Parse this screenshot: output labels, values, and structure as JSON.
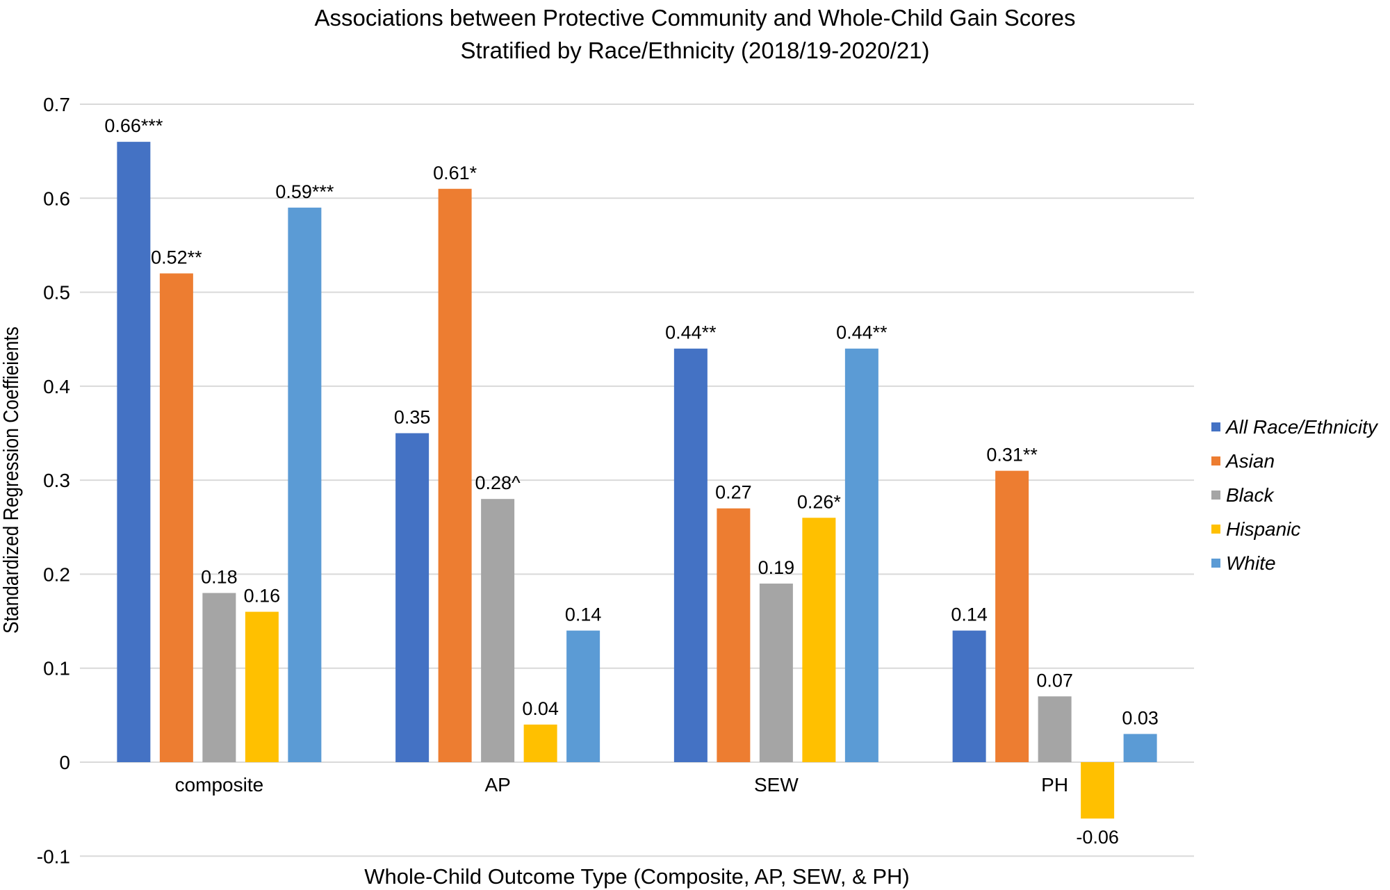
{
  "chart_data": {
    "type": "bar",
    "title": "Associations between Protective Community and Whole-Child Gain Scores",
    "subtitle": "Stratified by Race/Ethnicity (2018/19-2020/21)",
    "xlabel": "Whole-Child Outcome Type (Composite, AP, SEW, & PH)",
    "ylabel": "Standardized Regression Coeffieients",
    "ylim": [
      -0.1,
      0.7
    ],
    "yticks": [
      "-0.1",
      "0",
      "0.1",
      "0.2",
      "0.3",
      "0.4",
      "0.5",
      "0.6",
      "0.7"
    ],
    "grid": true,
    "legend_position": "right",
    "categories": [
      "composite",
      "AP",
      "SEW",
      "PH"
    ],
    "series": [
      {
        "name": "All Race/Ethnicity",
        "color": "#4472C4",
        "values": [
          0.66,
          0.35,
          0.44,
          0.14
        ],
        "labels": [
          "0.66***",
          "0.35",
          "0.44**",
          "0.14"
        ]
      },
      {
        "name": "Asian",
        "color": "#ED7D31",
        "values": [
          0.52,
          0.61,
          0.27,
          0.31
        ],
        "labels": [
          "0.52**",
          "0.61*",
          "0.27",
          "0.31**"
        ]
      },
      {
        "name": "Black",
        "color": "#A5A5A5",
        "values": [
          0.18,
          0.28,
          0.19,
          0.07
        ],
        "labels": [
          "0.18",
          "0.28^",
          "0.19",
          "0.07"
        ]
      },
      {
        "name": "Hispanic",
        "color": "#FFC000",
        "values": [
          0.16,
          0.04,
          0.26,
          -0.06
        ],
        "labels": [
          "0.16",
          "0.04",
          "0.26*",
          "-0.06"
        ]
      },
      {
        "name": "White",
        "color": "#5B9BD5",
        "values": [
          0.59,
          0.14,
          0.44,
          0.03
        ],
        "labels": [
          "0.59***",
          "0.14",
          "0.44**",
          "0.03"
        ]
      }
    ]
  }
}
